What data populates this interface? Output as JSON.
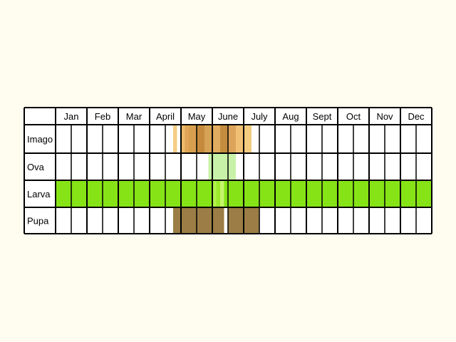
{
  "chart_data": {
    "type": "table",
    "title": "",
    "months": [
      "Jan",
      "Feb",
      "Mar",
      "April",
      "May",
      "June",
      "July",
      "Aug",
      "Sept",
      "Oct",
      "Nov",
      "Dec"
    ],
    "half_month_columns": 24,
    "stages": [
      {
        "name": "Imago",
        "segments": [
          {
            "from": 7.5,
            "to": 7.75,
            "color": "#f4ce85"
          },
          {
            "from": 8.0,
            "to": 8.25,
            "color": "#edba6a"
          },
          {
            "from": 8.25,
            "to": 8.5,
            "color": "#dfa455"
          },
          {
            "from": 8.5,
            "to": 9.0,
            "color": "#d89f4f"
          },
          {
            "from": 9.0,
            "to": 9.5,
            "color": "#c58a3c"
          },
          {
            "from": 9.5,
            "to": 10.0,
            "color": "#d6a255"
          },
          {
            "from": 10.0,
            "to": 10.5,
            "color": "#e0ad60"
          },
          {
            "from": 10.5,
            "to": 11.0,
            "color": "#c48c3e"
          },
          {
            "from": 11.0,
            "to": 11.5,
            "color": "#dca45a"
          },
          {
            "from": 11.5,
            "to": 12.0,
            "color": "#f0c075"
          },
          {
            "from": 12.0,
            "to": 12.5,
            "color": "#f4cc80"
          }
        ]
      },
      {
        "name": "Ova",
        "segments": [
          {
            "from": 9.75,
            "to": 11.5,
            "color": "#c8f2a8"
          }
        ]
      },
      {
        "name": "Larva",
        "segments": [
          {
            "from": 0.0,
            "to": 10.0,
            "color": "#86e316"
          },
          {
            "from": 10.0,
            "to": 10.25,
            "color": "#b0f24a"
          },
          {
            "from": 10.25,
            "to": 10.5,
            "color": "#9cea2c"
          },
          {
            "from": 10.5,
            "to": 10.75,
            "color": "#c4f56a"
          },
          {
            "from": 10.75,
            "to": 24.0,
            "color": "#86e316"
          }
        ]
      },
      {
        "name": "Pupa",
        "segments": [
          {
            "from": 7.5,
            "to": 10.75,
            "color": "#9b7d45"
          },
          {
            "from": 11.0,
            "to": 13.0,
            "color": "#9b7d45"
          }
        ]
      }
    ],
    "gaps": [
      {
        "stage": "Pupa",
        "from": 10.75,
        "to": 11.0
      }
    ],
    "colors": {
      "background": "#fffdf0",
      "cell": "#ffffff",
      "grid": "#000000"
    }
  }
}
